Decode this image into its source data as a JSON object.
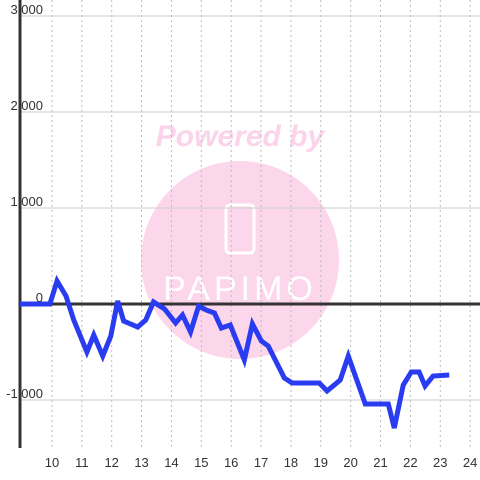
{
  "chart_data": {
    "type": "line",
    "watermark": "Powered by",
    "watermark_logo": "PAPIMO",
    "x": [
      8.93,
      9.93,
      10.17,
      10.47,
      10.73,
      11.17,
      11.4,
      11.7,
      11.97,
      12.2,
      12.4,
      12.87,
      13.14,
      13.4,
      13.77,
      14.14,
      14.37,
      14.64,
      14.91,
      15.17,
      15.44,
      15.67,
      15.97,
      16.44,
      16.71,
      17.01,
      17.24,
      17.78,
      18.04,
      18.95,
      19.21,
      19.65,
      19.92,
      20.49,
      21.26,
      21.46,
      21.76,
      22.03,
      22.29,
      22.49,
      22.76,
      23.3
    ],
    "series": [
      {
        "color": "#2a3cf0",
        "values": [
          0,
          0,
          240,
          83,
          -167,
          -500,
          -323,
          -542,
          -333,
          31,
          -177,
          -240,
          -167,
          21,
          -52,
          -198,
          -115,
          -292,
          -21,
          -63,
          -94,
          -250,
          -219,
          -583,
          -208,
          -385,
          -438,
          -771,
          -823,
          -823,
          -906,
          -792,
          -542,
          -1042,
          -1042,
          -1292,
          -844,
          -708,
          -708,
          -854,
          -750,
          -740
        ]
      }
    ],
    "xlim": [
      8.93,
      24.33
    ],
    "ylim": [
      -1500,
      3000
    ],
    "xticks": [
      10,
      11,
      12,
      13,
      14,
      15,
      16,
      17,
      18,
      19,
      20,
      21,
      22,
      23,
      24
    ],
    "yticks": [
      {
        "value": -1000,
        "label": "-1,000"
      },
      0,
      {
        "value": 1000,
        "label": "1,000"
      },
      {
        "value": 2000,
        "label": "2,000"
      },
      {
        "value": 3000,
        "label": "3,000"
      }
    ],
    "grid": true
  }
}
